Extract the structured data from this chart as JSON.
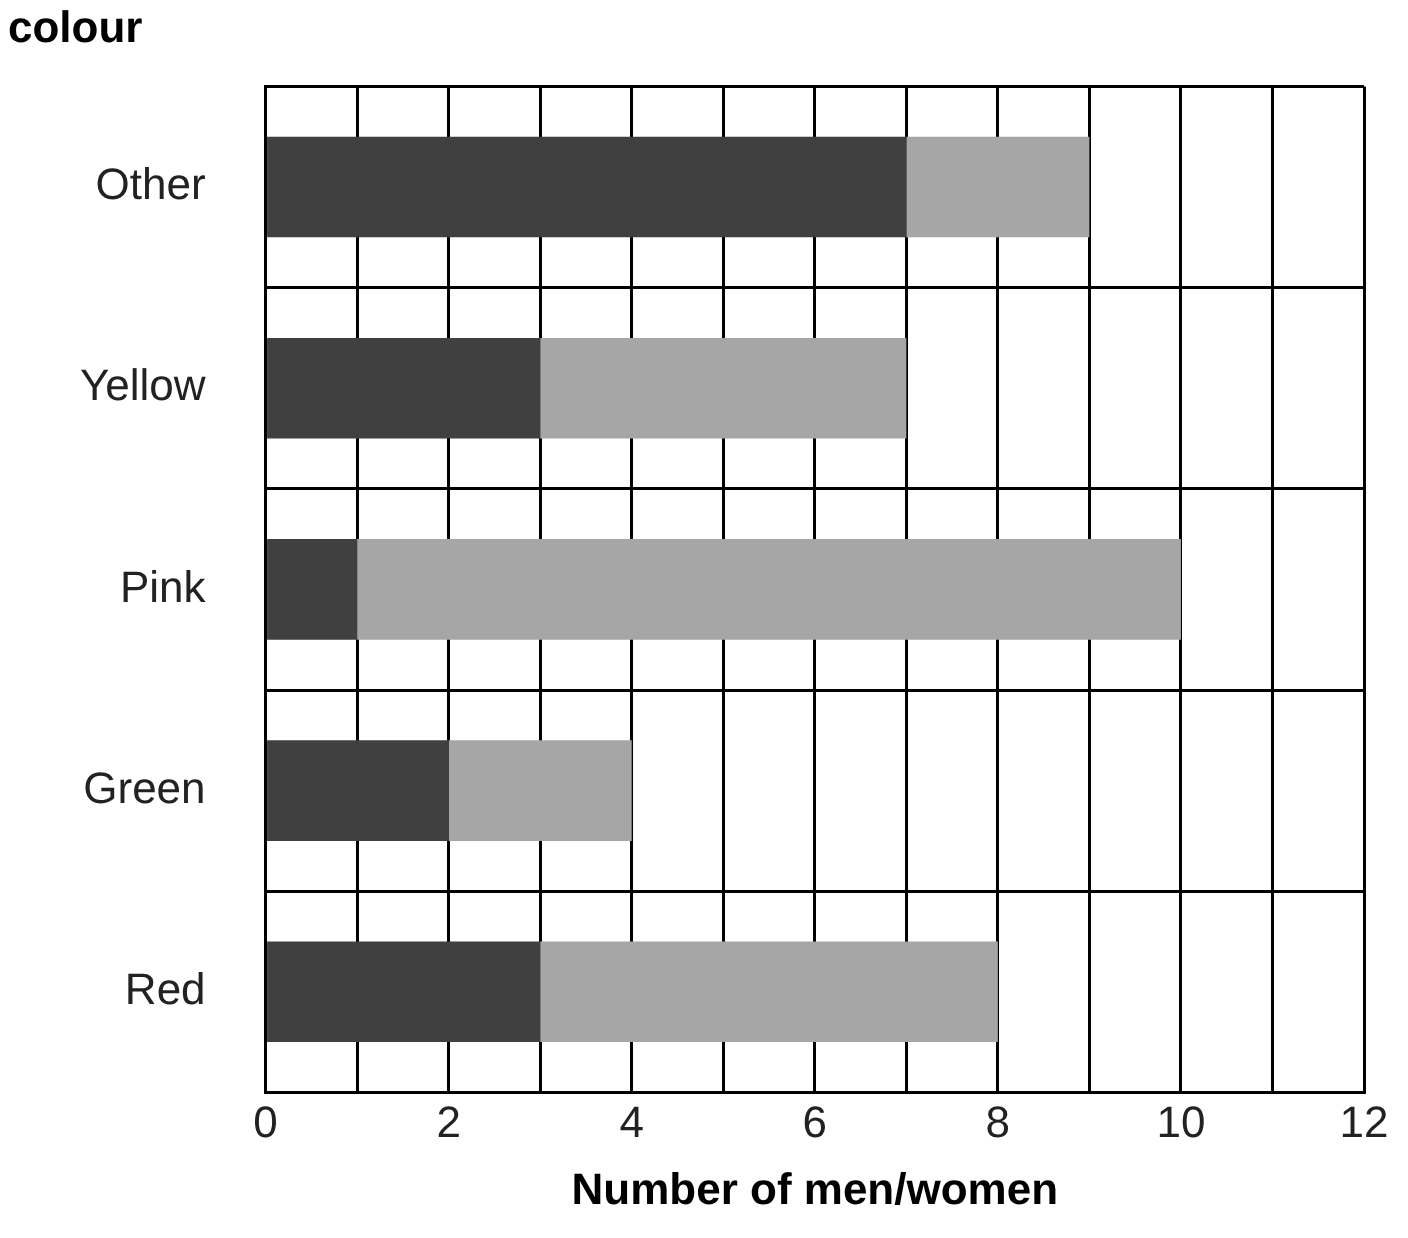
{
  "chart_data": {
    "type": "bar",
    "orientation": "horizontal",
    "stacked": true,
    "ylabel": "colour",
    "xlabel": "Number of men/women",
    "categories": [
      "Other",
      "Yellow",
      "Pink",
      "Green",
      "Red"
    ],
    "series": [
      {
        "color": "#404040",
        "values": [
          7,
          3,
          1,
          2,
          3
        ]
      },
      {
        "color": "#a6a6a6",
        "values": [
          2,
          4,
          9,
          2,
          5
        ]
      }
    ],
    "xlim": [
      0,
      12
    ],
    "xticks": [
      0,
      {
        "value": 1,
        "label": null
      },
      2,
      {
        "value": 3,
        "label": null
      },
      4,
      {
        "value": 5,
        "label": null
      },
      6,
      {
        "value": 7,
        "label": null
      },
      8,
      {
        "value": 9,
        "label": null
      },
      10,
      {
        "value": 11,
        "label": null
      },
      12
    ],
    "grid": true,
    "legend": false
  }
}
